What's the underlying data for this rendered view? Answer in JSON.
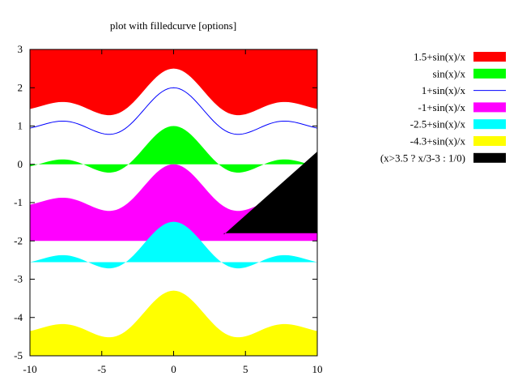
{
  "chart_data": {
    "type": "area",
    "title": "plot with filledcurve [options]",
    "xlabel": "",
    "ylabel": "",
    "xlim": [
      -10,
      10
    ],
    "ylim": [
      -5,
      3
    ],
    "x_ticks": [
      -10,
      -5,
      0,
      5,
      10
    ],
    "y_ticks": [
      -5,
      -4,
      -3,
      -2,
      -1,
      0,
      1,
      2,
      3
    ],
    "x_tick_labels": [
      "-10",
      "-5",
      "0",
      "5",
      "10"
    ],
    "y_tick_labels": [
      "-5",
      "-4",
      "-3",
      "-2",
      "-1",
      "0",
      "1",
      "2",
      "3"
    ],
    "grid": false,
    "legend_position": "right",
    "series": [
      {
        "name": "1.5+sin(x)/x",
        "color": "#ff0000",
        "style": "fill-above",
        "offset": 1.5
      },
      {
        "name": "sin(x)/x",
        "color": "#00ff00",
        "style": "fill-to-x1-axis",
        "offset": 0
      },
      {
        "name": "1+sin(x)/x",
        "color": "#0000ff",
        "style": "line",
        "offset": 1
      },
      {
        "name": "-1+sin(x)/x",
        "color": "#ff00ff",
        "style": "fill-to-y",
        "offset": -1,
        "fill_to": -2
      },
      {
        "name": "-2.5+sin(x)/x",
        "color": "#00ffff",
        "style": "fill-closed",
        "offset": -2.5
      },
      {
        "name": "-4.3+sin(x)/x",
        "color": "#ffff00",
        "style": "fill-below",
        "offset": -4.3
      },
      {
        "name": "(x>3.5 ? x/3-3 : 1/0)",
        "color": "#000000",
        "style": "fill-to-y",
        "fill_to": -1.8
      }
    ]
  }
}
